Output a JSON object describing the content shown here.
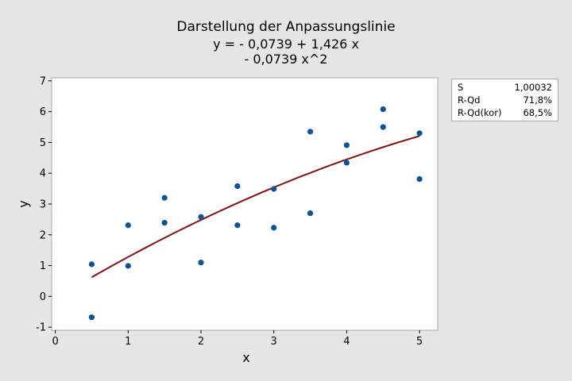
{
  "chart_data": {
    "type": "scatter",
    "title": "Darstellung der Anpassungslinie",
    "equation_line1": "y = - 0,0739 + 1,426 x",
    "equation_line2": "- 0,0739 x^2",
    "xlabel": "x",
    "ylabel": "y",
    "xlim": [
      -0.05,
      5.25
    ],
    "ylim": [
      -1.1,
      7.1
    ],
    "x_ticks": [
      0,
      1,
      2,
      3,
      4,
      5
    ],
    "x_tick_labels": [
      "0",
      "1",
      "2",
      "3",
      "4",
      "5"
    ],
    "y_ticks": [
      -1,
      0,
      1,
      2,
      3,
      4,
      5,
      6,
      7
    ],
    "y_tick_labels": [
      "-1",
      "0",
      "1",
      "2",
      "3",
      "4",
      "5",
      "6",
      "7"
    ],
    "grid": false,
    "points": [
      {
        "x": 0.5,
        "y": 1.04
      },
      {
        "x": 0.5,
        "y": -0.68
      },
      {
        "x": 1.0,
        "y": 2.31
      },
      {
        "x": 1.0,
        "y": 0.99
      },
      {
        "x": 1.5,
        "y": 3.2
      },
      {
        "x": 1.5,
        "y": 2.39
      },
      {
        "x": 2.0,
        "y": 2.58
      },
      {
        "x": 2.0,
        "y": 1.1
      },
      {
        "x": 2.5,
        "y": 3.58
      },
      {
        "x": 2.5,
        "y": 2.31
      },
      {
        "x": 3.0,
        "y": 3.49
      },
      {
        "x": 3.0,
        "y": 2.23
      },
      {
        "x": 3.5,
        "y": 5.35
      },
      {
        "x": 3.5,
        "y": 2.7
      },
      {
        "x": 4.0,
        "y": 4.91
      },
      {
        "x": 4.0,
        "y": 4.34
      },
      {
        "x": 4.5,
        "y": 6.08
      },
      {
        "x": 4.5,
        "y": 5.5
      },
      {
        "x": 5.0,
        "y": 5.3
      },
      {
        "x": 5.0,
        "y": 3.81
      }
    ],
    "fit_coefficients": {
      "intercept": -0.0739,
      "linear": 1.426,
      "quadratic": -0.0739
    },
    "fit_x_range": [
      0.5,
      5.0
    ],
    "point_color": "#0b5394",
    "line_color": "#7f1416",
    "stats": [
      {
        "label": "S",
        "value": "1,00032"
      },
      {
        "label": "R-Qd",
        "value": "71,8%"
      },
      {
        "label": "R-Qd(kor)",
        "value": "68,5%"
      }
    ]
  }
}
